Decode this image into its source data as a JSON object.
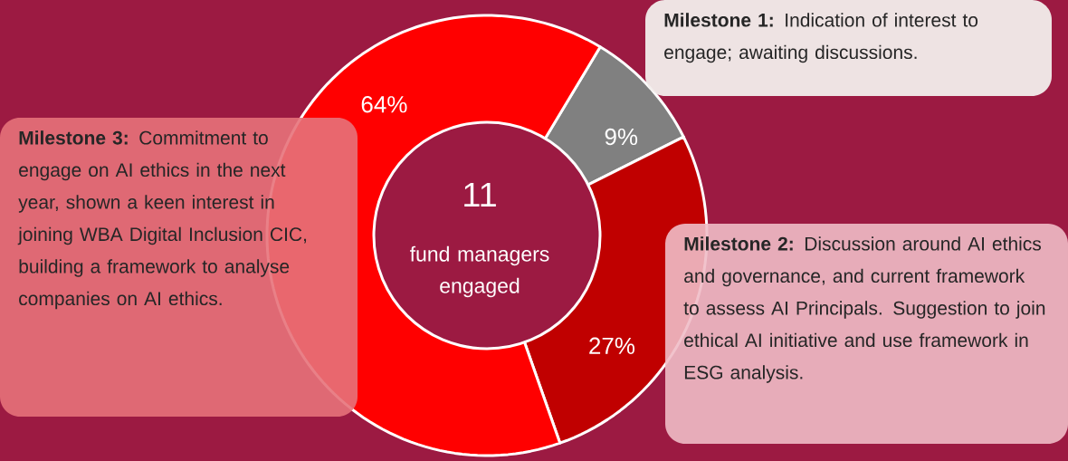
{
  "chart_data": {
    "type": "donut",
    "title": "11",
    "subtitle": "fund managers engaged",
    "categories": [
      null,
      null,
      null
    ],
    "values": [
      9,
      27,
      64
    ],
    "colors": [
      "#808080",
      "#c00000",
      "#ff0000"
    ],
    "value_labels": [
      "9%",
      "27%",
      "64%"
    ],
    "annotations": [
      "**Milestone 1:** Indication of interest to engage; awaiting discussions.",
      "**Milestone 2:** Discussion around AI ethics and governance, and current framework to assess AI Principals. Suggestion to join ethical AI initiative and use framework in ESG analysis.",
      "**Milestone 3:** Commitment to engage on AI ethics in the next year, shown a keen interest in joining WBA Digital Inclusion CIC, building a framework to analyse companies on AI ethics."
    ]
  }
}
